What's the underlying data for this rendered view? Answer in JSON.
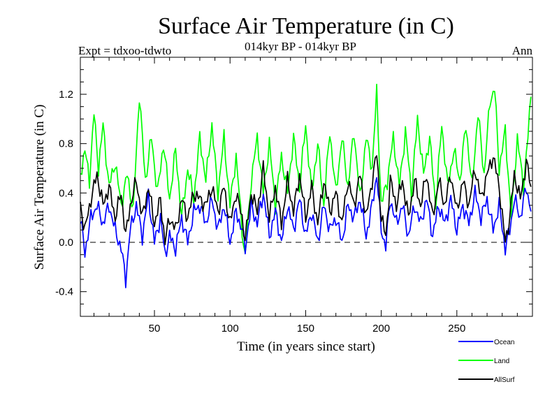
{
  "chart_data": {
    "type": "line",
    "title": "Surface Air Temperature (in C)",
    "subtitle_left": "Expt = tdxoo-tdwto",
    "subtitle_center": "014kyr BP - 014kyr BP",
    "subtitle_right": "Ann",
    "xlabel": "Time (in years since start)",
    "ylabel": "Surface Air Temperature (in C)",
    "xlim": [
      1,
      300
    ],
    "ylim": [
      -0.6,
      1.5
    ],
    "x_ticks": [
      50,
      100,
      150,
      200,
      250
    ],
    "y_ticks": [
      -0.4,
      0.0,
      0.4,
      0.8,
      1.2
    ],
    "y_tick_labels": [
      "-0.4",
      "0.0",
      "0.4",
      "0.8",
      "1.2"
    ],
    "zero_line": true,
    "legend_position": "bottom-right",
    "series": [
      {
        "name": "Ocean",
        "color": "#0000ff",
        "keypoints": [
          [
            1,
            0.2
          ],
          [
            4,
            -0.08
          ],
          [
            8,
            0.2
          ],
          [
            12,
            0.3
          ],
          [
            16,
            0.15
          ],
          [
            20,
            0.3
          ],
          [
            24,
            0.1
          ],
          [
            28,
            -0.05
          ],
          [
            31,
            -0.3
          ],
          [
            34,
            0.1
          ],
          [
            38,
            0.3
          ],
          [
            42,
            0.05
          ],
          [
            46,
            0.38
          ],
          [
            50,
            0.0
          ],
          [
            54,
            0.2
          ],
          [
            57,
            -0.1
          ],
          [
            60,
            0.05
          ],
          [
            64,
            -0.05
          ],
          [
            68,
            0.2
          ],
          [
            72,
            0.0
          ],
          [
            76,
            0.25
          ],
          [
            80,
            0.3
          ],
          [
            84,
            0.15
          ],
          [
            88,
            0.35
          ],
          [
            92,
            0.1
          ],
          [
            96,
            0.3
          ],
          [
            100,
            0.0
          ],
          [
            104,
            0.25
          ],
          [
            108,
            0.1
          ],
          [
            110,
            -0.05
          ],
          [
            114,
            0.3
          ],
          [
            118,
            0.15
          ],
          [
            122,
            0.4
          ],
          [
            126,
            0.05
          ],
          [
            130,
            0.25
          ],
          [
            134,
            0.0
          ],
          [
            138,
            0.3
          ],
          [
            142,
            0.1
          ],
          [
            146,
            0.35
          ],
          [
            150,
            0.05
          ],
          [
            154,
            0.25
          ],
          [
            158,
            0.0
          ],
          [
            162,
            0.3
          ],
          [
            166,
            0.1
          ],
          [
            170,
            0.2
          ],
          [
            174,
            0.0
          ],
          [
            178,
            0.3
          ],
          [
            182,
            0.2
          ],
          [
            186,
            0.35
          ],
          [
            190,
            0.05
          ],
          [
            194,
            0.3
          ],
          [
            197,
            0.55
          ],
          [
            200,
            0.1
          ],
          [
            203,
            -0.03
          ],
          [
            206,
            0.35
          ],
          [
            210,
            0.15
          ],
          [
            214,
            0.3
          ],
          [
            218,
            0.05
          ],
          [
            222,
            0.3
          ],
          [
            226,
            0.15
          ],
          [
            230,
            0.35
          ],
          [
            234,
            0.05
          ],
          [
            238,
            0.3
          ],
          [
            242,
            0.15
          ],
          [
            246,
            0.35
          ],
          [
            250,
            0.1
          ],
          [
            254,
            0.3
          ],
          [
            258,
            0.15
          ],
          [
            262,
            0.4
          ],
          [
            266,
            0.2
          ],
          [
            270,
            0.35
          ],
          [
            274,
            0.1
          ],
          [
            278,
            0.3
          ],
          [
            282,
            -0.05
          ],
          [
            285,
            0.1
          ],
          [
            288,
            0.35
          ],
          [
            292,
            0.2
          ],
          [
            296,
            0.45
          ],
          [
            299,
            0.25
          ]
        ]
      },
      {
        "name": "Land",
        "color": "#00ff00",
        "keypoints": [
          [
            1,
            0.55
          ],
          [
            4,
            0.75
          ],
          [
            7,
            0.5
          ],
          [
            10,
            1.05
          ],
          [
            13,
            0.6
          ],
          [
            16,
            0.95
          ],
          [
            20,
            0.45
          ],
          [
            24,
            0.65
          ],
          [
            28,
            0.3
          ],
          [
            32,
            0.55
          ],
          [
            36,
            0.25
          ],
          [
            40,
            1.2
          ],
          [
            44,
            0.5
          ],
          [
            48,
            0.85
          ],
          [
            52,
            0.4
          ],
          [
            56,
            0.8
          ],
          [
            60,
            0.35
          ],
          [
            64,
            0.75
          ],
          [
            68,
            0.2
          ],
          [
            72,
            0.6
          ],
          [
            76,
            0.35
          ],
          [
            80,
            0.85
          ],
          [
            84,
            0.5
          ],
          [
            88,
            0.95
          ],
          [
            92,
            0.4
          ],
          [
            96,
            0.85
          ],
          [
            100,
            0.3
          ],
          [
            104,
            0.7
          ],
          [
            108,
            0.1
          ],
          [
            110,
            -0.12
          ],
          [
            114,
            0.5
          ],
          [
            118,
            0.85
          ],
          [
            122,
            0.4
          ],
          [
            126,
            0.8
          ],
          [
            130,
            0.3
          ],
          [
            134,
            0.7
          ],
          [
            138,
            0.4
          ],
          [
            142,
            0.85
          ],
          [
            146,
            0.45
          ],
          [
            150,
            0.95
          ],
          [
            154,
            0.4
          ],
          [
            158,
            0.8
          ],
          [
            162,
            0.3
          ],
          [
            166,
            0.9
          ],
          [
            170,
            0.4
          ],
          [
            174,
            0.85
          ],
          [
            178,
            0.45
          ],
          [
            182,
            0.9
          ],
          [
            186,
            0.35
          ],
          [
            190,
            0.85
          ],
          [
            194,
            0.6
          ],
          [
            197,
            1.22
          ],
          [
            200,
            0.3
          ],
          [
            204,
            0.5
          ],
          [
            208,
            0.85
          ],
          [
            212,
            0.45
          ],
          [
            216,
            0.9
          ],
          [
            220,
            0.4
          ],
          [
            224,
            1.0
          ],
          [
            228,
            0.55
          ],
          [
            232,
            0.85
          ],
          [
            236,
            0.3
          ],
          [
            240,
            0.95
          ],
          [
            244,
            0.45
          ],
          [
            248,
            0.75
          ],
          [
            252,
            0.5
          ],
          [
            256,
            0.95
          ],
          [
            260,
            0.45
          ],
          [
            264,
            1.05
          ],
          [
            268,
            0.55
          ],
          [
            272,
            1.15
          ],
          [
            275,
            1.25
          ],
          [
            278,
            0.6
          ],
          [
            282,
            0.9
          ],
          [
            286,
            0.2
          ],
          [
            290,
            0.85
          ],
          [
            294,
            0.45
          ],
          [
            297,
            0.85
          ],
          [
            299,
            1.18
          ]
        ]
      },
      {
        "name": "AllSurf",
        "color": "#000000",
        "keypoints": [
          [
            1,
            0.3
          ],
          [
            4,
            0.1
          ],
          [
            8,
            0.35
          ],
          [
            12,
            0.55
          ],
          [
            16,
            0.3
          ],
          [
            20,
            0.45
          ],
          [
            24,
            0.2
          ],
          [
            28,
            0.4
          ],
          [
            31,
            0.05
          ],
          [
            34,
            0.3
          ],
          [
            38,
            0.5
          ],
          [
            42,
            0.2
          ],
          [
            46,
            0.45
          ],
          [
            50,
            0.15
          ],
          [
            54,
            0.35
          ],
          [
            57,
            0.0
          ],
          [
            60,
            0.2
          ],
          [
            64,
            0.1
          ],
          [
            68,
            0.35
          ],
          [
            72,
            0.2
          ],
          [
            76,
            0.4
          ],
          [
            80,
            0.35
          ],
          [
            84,
            0.3
          ],
          [
            88,
            0.45
          ],
          [
            92,
            0.25
          ],
          [
            96,
            0.45
          ],
          [
            100,
            0.15
          ],
          [
            104,
            0.4
          ],
          [
            108,
            0.2
          ],
          [
            110,
            0.02
          ],
          [
            114,
            0.4
          ],
          [
            118,
            0.25
          ],
          [
            122,
            0.6
          ],
          [
            126,
            0.2
          ],
          [
            130,
            0.45
          ],
          [
            134,
            0.15
          ],
          [
            138,
            0.5
          ],
          [
            142,
            0.25
          ],
          [
            146,
            0.55
          ],
          [
            150,
            0.2
          ],
          [
            154,
            0.45
          ],
          [
            158,
            0.15
          ],
          [
            162,
            0.5
          ],
          [
            166,
            0.25
          ],
          [
            170,
            0.4
          ],
          [
            174,
            0.15
          ],
          [
            178,
            0.5
          ],
          [
            182,
            0.3
          ],
          [
            186,
            0.55
          ],
          [
            190,
            0.2
          ],
          [
            194,
            0.5
          ],
          [
            197,
            0.72
          ],
          [
            200,
            0.2
          ],
          [
            203,
            0.05
          ],
          [
            206,
            0.5
          ],
          [
            210,
            0.3
          ],
          [
            214,
            0.5
          ],
          [
            218,
            0.2
          ],
          [
            222,
            0.5
          ],
          [
            226,
            0.3
          ],
          [
            230,
            0.55
          ],
          [
            234,
            0.2
          ],
          [
            238,
            0.5
          ],
          [
            242,
            0.3
          ],
          [
            246,
            0.55
          ],
          [
            250,
            0.25
          ],
          [
            254,
            0.5
          ],
          [
            258,
            0.3
          ],
          [
            262,
            0.6
          ],
          [
            266,
            0.35
          ],
          [
            270,
            0.55
          ],
          [
            274,
            0.7
          ],
          [
            278,
            0.45
          ],
          [
            282,
            0.0
          ],
          [
            285,
            0.2
          ],
          [
            288,
            0.55
          ],
          [
            292,
            0.35
          ],
          [
            296,
            0.65
          ],
          [
            299,
            0.45
          ]
        ]
      }
    ]
  }
}
